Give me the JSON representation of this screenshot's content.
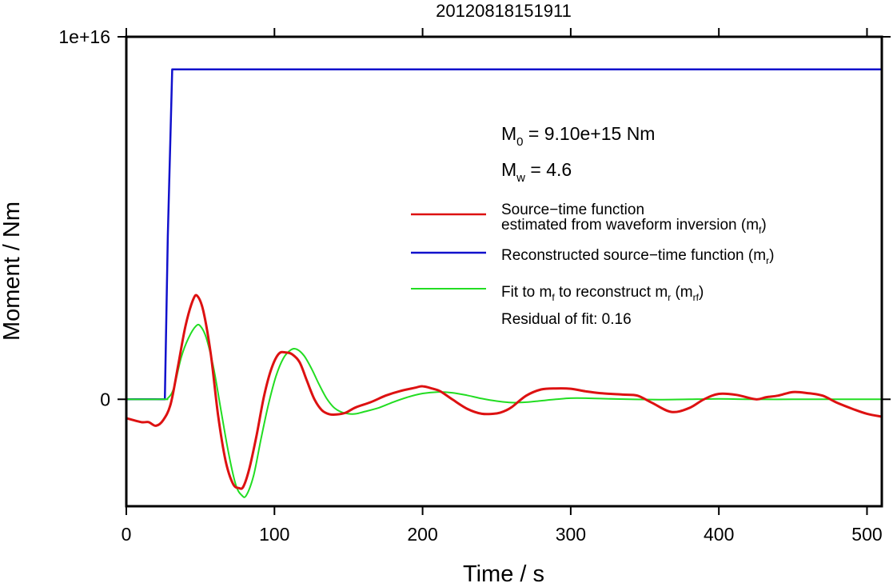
{
  "chart_data": {
    "type": "line",
    "title": "20120818151911",
    "xlabel": "Time / s",
    "ylabel": "Moment / Nm",
    "xlim": [
      0,
      510
    ],
    "ylim": [
      -2950000000000000.0,
      1e+16
    ],
    "x_ticks": [
      0,
      100,
      200,
      300,
      400,
      500
    ],
    "x_tick_labels": [
      "0",
      "100",
      "200",
      "300",
      "400",
      "500"
    ],
    "y_ticks": [
      0,
      1e+16
    ],
    "y_tick_labels": [
      "0",
      "1e+16"
    ],
    "grid": false,
    "legend_position": "right",
    "annotations": {
      "m0": {
        "prefix": "M",
        "sub": "0",
        "text": " = 9.10e+15 Nm"
      },
      "mw": {
        "prefix": "M",
        "sub": "w",
        "text": " = 4.6"
      },
      "residual": "Residual of fit: 0.16"
    },
    "legend": [
      {
        "key": "mf",
        "line1": "Source−time function",
        "line2_pre": "estimated from waveform inversion (m",
        "line2_sub": "f",
        "line2_post": ")"
      },
      {
        "key": "mr",
        "pre": "Reconstructed source−time function (m",
        "sub": "r",
        "post": ")"
      },
      {
        "key": "mrf",
        "pre": "Fit to m",
        "sub1": "f",
        "mid": " to reconstruct m",
        "sub2": "r",
        "mid2": " (m",
        "sub3": "rf",
        "post": ")"
      }
    ],
    "colors": {
      "mf": "#dd1111",
      "mr": "#1111cc",
      "mrf": "#22dd22",
      "axis": "#000000"
    },
    "series": [
      {
        "key": "mf",
        "x": [
          0,
          10,
          15,
          20,
          25,
          30,
          35,
          40,
          45,
          48,
          52,
          57,
          62,
          67,
          72,
          76,
          79,
          83,
          88,
          93,
          98,
          103,
          108,
          112,
          117,
          122,
          127,
          132,
          137,
          142,
          148,
          155,
          165,
          175,
          185,
          195,
          200,
          207,
          212,
          220,
          230,
          240,
          250,
          255,
          260,
          270,
          280,
          290,
          300,
          310,
          320,
          335,
          345,
          355,
          368,
          380,
          390,
          400,
          412,
          425,
          432,
          440,
          450,
          460,
          470,
          480,
          490,
          500,
          510
        ],
        "y": [
          -520000000000000.0,
          -630000000000000.0,
          -630000000000000.0,
          -730000000000000.0,
          -570000000000000.0,
          -120000000000000.0,
          940000000000000.0,
          2030000000000000.0,
          2740000000000000.0,
          2850000000000000.0,
          2430000000000000.0,
          1260000000000000.0,
          -460000000000000.0,
          -1690000000000000.0,
          -2330000000000000.0,
          -2450000000000000.0,
          -2410000000000000.0,
          -1920000000000000.0,
          -980000000000000.0,
          90000000000000.0,
          850000000000000.0,
          1260000000000000.0,
          1290000000000000.0,
          1240000000000000.0,
          1020000000000000.0,
          500000000000000.0,
          0.0,
          -300000000000000.0,
          -410000000000000.0,
          -420000000000000.0,
          -370000000000000.0,
          -220000000000000.0,
          -80000000000000.0,
          100000000000000.0,
          230000000000000.0,
          320000000000000.0,
          360000000000000.0,
          290000000000000.0,
          220000000000000.0,
          0.0,
          -260000000000000.0,
          -400000000000000.0,
          -390000000000000.0,
          -330000000000000.0,
          -220000000000000.0,
          100000000000000.0,
          270000000000000.0,
          300000000000000.0,
          290000000000000.0,
          220000000000000.0,
          170000000000000.0,
          130000000000000.0,
          100000000000000.0,
          -100000000000000.0,
          -350000000000000.0,
          -240000000000000.0,
          0.0,
          150000000000000.0,
          120000000000000.0,
          0.0,
          60000000000000.0,
          100000000000000.0,
          200000000000000.0,
          170000000000000.0,
          100000000000000.0,
          -100000000000000.0,
          -260000000000000.0,
          -400000000000000.0,
          -480000000000000.0
        ]
      },
      {
        "key": "mr",
        "x": [
          0,
          26,
          28,
          31,
          510
        ],
        "y": [
          0,
          0,
          4500000000000000.0,
          9100000000000000.0,
          9100000000000000.0
        ]
      },
      {
        "key": "mrf",
        "x": [
          0,
          25,
          28,
          32,
          37,
          42,
          47,
          50,
          54,
          59,
          64,
          69,
          74,
          78,
          81,
          86,
          91,
          96,
          101,
          106,
          111,
          115,
          120,
          125,
          130,
          135,
          140,
          145,
          150,
          155,
          160,
          170,
          180,
          190,
          200,
          210,
          220,
          230,
          240,
          250,
          260,
          270,
          280,
          290,
          300,
          310,
          320,
          340,
          360,
          380,
          400,
          420,
          450,
          480,
          510
        ],
        "y": [
          0,
          0,
          30000000000000.0,
          300000000000000.0,
          1150000000000000.0,
          1690000000000000.0,
          2020000000000000.0,
          2020000000000000.0,
          1690000000000000.0,
          850000000000000.0,
          -330000000000000.0,
          -1480000000000000.0,
          -2370000000000000.0,
          -2650000000000000.0,
          -2650000000000000.0,
          -2090000000000000.0,
          -1080000000000000.0,
          -130000000000000.0,
          630000000000000.0,
          1130000000000000.0,
          1360000000000000.0,
          1380000000000000.0,
          1200000000000000.0,
          850000000000000.0,
          420000000000000.0,
          40000000000000.0,
          -220000000000000.0,
          -350000000000000.0,
          -400000000000000.0,
          -400000000000000.0,
          -350000000000000.0,
          -240000000000000.0,
          -80000000000000.0,
          60000000000000.0,
          160000000000000.0,
          200000000000000.0,
          180000000000000.0,
          110000000000000.0,
          20000000000000.0,
          -50000000000000.0,
          -90000000000000.0,
          -80000000000000.0,
          -40000000000000.0,
          0.0,
          30000000000000.0,
          30000000000000.0,
          20000000000000.0,
          0.0,
          -10000000000000.0,
          0.0,
          10000000000000.0,
          0.0,
          0.0,
          0.0,
          0.0
        ]
      }
    ]
  }
}
